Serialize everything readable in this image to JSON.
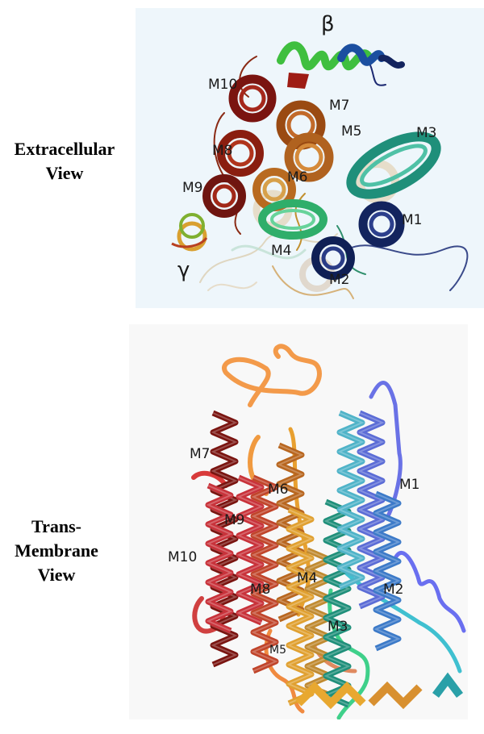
{
  "captions": {
    "extracellular": [
      "Extracellular",
      "View"
    ],
    "transmembrane": [
      "Trans-",
      "Membrane",
      "View"
    ]
  },
  "top_view": {
    "labels": {
      "beta": "β",
      "gamma": "γ",
      "m1": "M1",
      "m2": "M2",
      "m3": "M3",
      "m4": "M4",
      "m5": "M5",
      "m6": "M6",
      "m7": "M7",
      "m8": "M8",
      "m9": "M9",
      "m10": "M10"
    }
  },
  "bottom_view": {
    "labels": {
      "m1": "M1",
      "m2": "M2",
      "m3": "M3",
      "m4": "M4",
      "m5": "M5",
      "m6": "M6",
      "m7": "M7",
      "m8": "M8",
      "m9": "M9",
      "m10": "M10"
    }
  },
  "colors": {
    "red_dark": "#7a1410",
    "red": "#c8323a",
    "orange": "#b8661f",
    "tan": "#d8b070",
    "teal": "#1f8f7a",
    "green": "#36b86a",
    "navy": "#13245e",
    "blue": "#5b6cd6",
    "cyan": "#4fb3c8",
    "amber": "#e0a030",
    "coral": "#f08040"
  }
}
